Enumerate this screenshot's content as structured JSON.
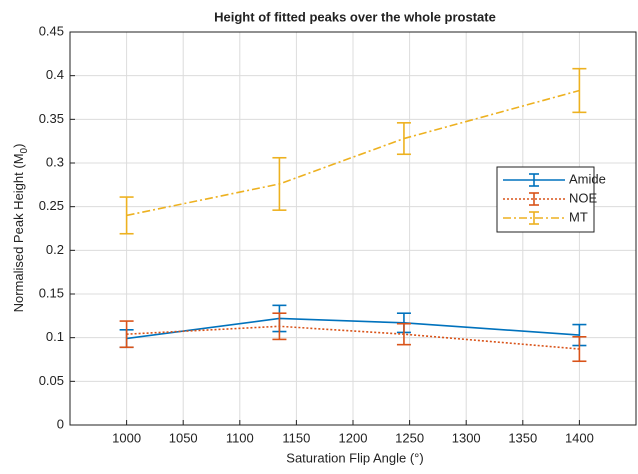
{
  "chart_data": {
    "type": "line",
    "title": "Height of fitted peaks over the whole prostate",
    "x_label": "Saturation Flip Angle (°)",
    "y_label": {
      "text": "Normalised Peak Height (M",
      "subscript": "0",
      "suffix": ")"
    },
    "x": [
      1000,
      1135,
      1245,
      1400
    ],
    "series": [
      {
        "name": "Amide",
        "color": "#0072bd",
        "linestyle": "solid",
        "values": [
          0.099,
          0.122,
          0.117,
          0.103
        ],
        "errors": [
          0.01,
          0.015,
          0.011,
          0.012
        ]
      },
      {
        "name": "NOE",
        "color": "#d95319",
        "linestyle": "dotted",
        "values": [
          0.104,
          0.113,
          0.104,
          0.087
        ],
        "errors": [
          0.015,
          0.015,
          0.012,
          0.014
        ]
      },
      {
        "name": "MT",
        "color": "#edb120",
        "linestyle": "dashdot",
        "values": [
          0.24,
          0.276,
          0.328,
          0.383
        ],
        "errors": [
          0.021,
          0.03,
          0.018,
          0.025
        ]
      }
    ],
    "xlim": [
      950,
      1450
    ],
    "xticks": [
      1000,
      1050,
      1100,
      1150,
      1200,
      1250,
      1300,
      1350,
      1400
    ],
    "ylim": [
      0,
      0.45
    ],
    "yticks": [
      0,
      0.05,
      0.1,
      0.15,
      0.2,
      0.25,
      0.3,
      0.35,
      0.4,
      0.45
    ],
    "grid": true,
    "legend": "right"
  }
}
